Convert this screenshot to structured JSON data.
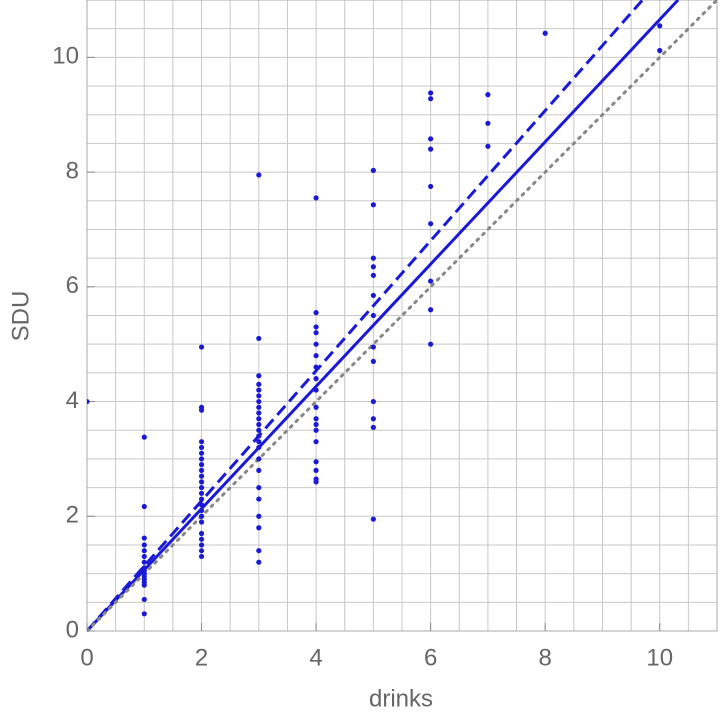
{
  "chart_data": {
    "type": "scatter",
    "xlabel": "drinks",
    "ylabel": "SDU",
    "xlim": [
      0,
      11
    ],
    "ylim": [
      0,
      11
    ],
    "xticks": [
      0,
      2,
      4,
      6,
      8,
      10
    ],
    "yticks": [
      0,
      2,
      4,
      6,
      8,
      10
    ],
    "xgrid": [
      0.5,
      1,
      1.5,
      2,
      2.5,
      3,
      3.5,
      4,
      4.5,
      5,
      5.5,
      6,
      6.5,
      7,
      7.5,
      8,
      8.5,
      9,
      9.5,
      10,
      10.5
    ],
    "ygrid": [
      0.5,
      1,
      1.5,
      2,
      2.5,
      3,
      3.5,
      4,
      4.5,
      5,
      5.5,
      6,
      6.5,
      7,
      7.5,
      8,
      8.5,
      9,
      9.5,
      10,
      10.5
    ],
    "grid": true,
    "series": [
      {
        "color": "#1a1ad6",
        "x": [
          0,
          1,
          1,
          1,
          1,
          1,
          1,
          1,
          1,
          1,
          1,
          1,
          1,
          1,
          1,
          1,
          1,
          2,
          2,
          2,
          2,
          2,
          2,
          2,
          2,
          2,
          2,
          2,
          2,
          2,
          2,
          2,
          2,
          2,
          2,
          2,
          2,
          2,
          2,
          2,
          3,
          3,
          3,
          3,
          3,
          3,
          3,
          3,
          3,
          3,
          3,
          3,
          3,
          3,
          3,
          3,
          3,
          3,
          3,
          3,
          3,
          3,
          3,
          4,
          4,
          4,
          4,
          4,
          4,
          4,
          4,
          4,
          4,
          4,
          4,
          4,
          4,
          4,
          4,
          4,
          4,
          5,
          5,
          5,
          5,
          5,
          5,
          5,
          5,
          5,
          5,
          5,
          5,
          5,
          6,
          6,
          6,
          6,
          6,
          6,
          6,
          6,
          6,
          7,
          7,
          7,
          8,
          10,
          10
        ],
        "values": [
          4,
          3.38,
          2.17,
          1.62,
          1.5,
          1.4,
          1.3,
          1.2,
          1.1,
          1.05,
          1.0,
          0.95,
          0.9,
          0.85,
          0.8,
          0.55,
          0.3,
          4.95,
          3.9,
          3.85,
          3.3,
          3.2,
          3.1,
          3.0,
          2.9,
          2.8,
          2.7,
          2.6,
          2.5,
          2.4,
          2.3,
          2.2,
          2.1,
          2.0,
          1.9,
          1.7,
          1.6,
          1.5,
          1.4,
          1.3,
          7.95,
          5.1,
          4.45,
          4.3,
          4.2,
          4.1,
          4.0,
          3.9,
          3.8,
          3.7,
          3.6,
          3.5,
          3.4,
          3.3,
          3.2,
          3.0,
          2.8,
          2.5,
          2.3,
          2.0,
          1.8,
          1.4,
          1.2,
          7.55,
          5.55,
          5.3,
          5.2,
          5.0,
          4.8,
          4.6,
          4.4,
          4.2,
          3.9,
          3.7,
          3.6,
          3.5,
          3.3,
          2.95,
          2.8,
          2.65,
          2.6,
          8.03,
          7.43,
          6.5,
          6.35,
          6.2,
          5.85,
          5.5,
          4.95,
          4.7,
          4.0,
          3.7,
          3.55,
          1.95,
          9.38,
          9.28,
          8.58,
          8.4,
          7.75,
          7.1,
          6.1,
          5.6,
          5.0,
          9.35,
          8.85,
          8.45,
          10.42,
          10.55,
          10.12
        ]
      }
    ],
    "lines": [
      {
        "color": "#1a1ad6",
        "style": "solid",
        "x": [
          0,
          10.32
        ],
        "values": [
          0,
          11
        ]
      },
      {
        "color": "#1a1ad6",
        "style": "dashed",
        "x": [
          0,
          9.7
        ],
        "values": [
          0,
          11
        ]
      },
      {
        "color": "#888888",
        "style": "dotted",
        "x": [
          0,
          11
        ],
        "values": [
          0,
          11
        ]
      }
    ]
  }
}
